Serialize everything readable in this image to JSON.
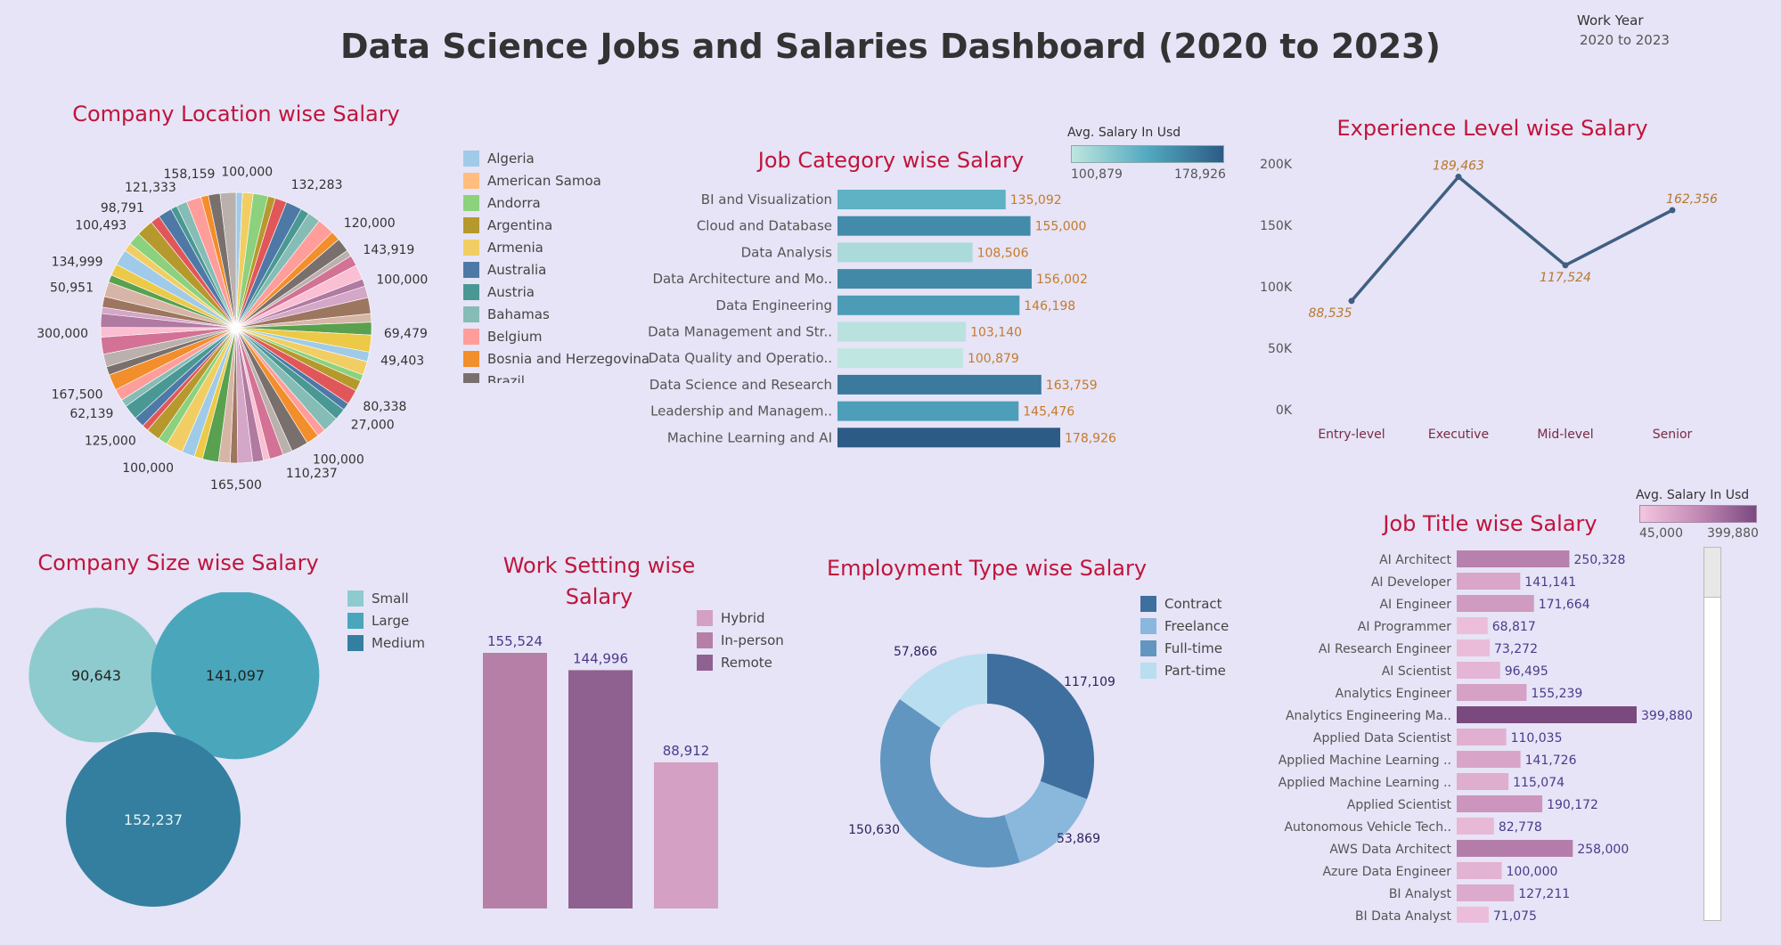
{
  "dashboard": {
    "title": "Data Science Jobs and Salaries Dashboard (2020 to 2023)",
    "filter_label": "Work Year",
    "filter_value": "2020 to 2023"
  },
  "location": {
    "title": "Company Location wise Salary",
    "legend": [
      "Algeria",
      "American Samoa",
      "Andorra",
      "Argentina",
      "Armenia",
      "Australia",
      "Austria",
      "Bahamas",
      "Belgium",
      "Bosnia and Herzegovina",
      "Brazil"
    ],
    "legend_colors": [
      "#a0cbe8",
      "#ffbe7d",
      "#8cd17d",
      "#b6992d",
      "#f1ce63",
      "#4e79a7",
      "#499894",
      "#86bcb6",
      "#ff9d9a",
      "#f28e2b",
      "#79706e"
    ],
    "palette": [
      "#a0cbe8",
      "#f1ce63",
      "#8cd17d",
      "#b6992d",
      "#e15759",
      "#4e79a7",
      "#499894",
      "#86bcb6",
      "#ff9d9a",
      "#f28e2b",
      "#79706e",
      "#bab0ac",
      "#d37295",
      "#fabfd2",
      "#b07aa1",
      "#d4a6c8",
      "#9d7660",
      "#d7b5a6",
      "#59a14f",
      "#edc948"
    ],
    "labels": [
      {
        "v": "100,000",
        "a": 4
      },
      {
        "v": "132,283",
        "a": 24
      },
      {
        "v": "120,000",
        "a": 48
      },
      {
        "v": "143,919",
        "a": 60
      },
      {
        "v": "100,000",
        "a": 72
      },
      {
        "v": "69,479",
        "a": 92
      },
      {
        "v": "49,403",
        "a": 102
      },
      {
        "v": "80,338",
        "a": 120
      },
      {
        "v": "27,000",
        "a": 128
      },
      {
        "v": "100,000",
        "a": 147
      },
      {
        "v": "110,237",
        "a": 158
      },
      {
        "v": "165,500",
        "a": 180
      },
      {
        "v": "100,000",
        "a": 207
      },
      {
        "v": "125,000",
        "a": 224
      },
      {
        "v": "62,139",
        "a": 237
      },
      {
        "v": "167,500",
        "a": 245
      },
      {
        "v": "300,000",
        "a": 268
      },
      {
        "v": "50,951",
        "a": 285
      },
      {
        "v": "134,999",
        "a": 295
      },
      {
        "v": "100,493",
        "a": 311
      },
      {
        "v": "98,791",
        "a": 320
      },
      {
        "v": "121,333",
        "a": 334
      },
      {
        "v": "158,159",
        "a": 349
      }
    ]
  },
  "job_category": {
    "title": "Job Category wise Salary",
    "scale_title": "Avg. Salary In Usd",
    "scale_min": "100,879",
    "scale_max": "178,926"
  },
  "experience": {
    "title": "Experience Level wise Salary"
  },
  "company_size": {
    "title": "Company Size wise Salary",
    "legend": [
      "Small",
      "Large",
      "Medium"
    ],
    "colors": [
      "#8ecbce",
      "#4aa6bb",
      "#347f9f"
    ],
    "values": [
      "90,643",
      "141,097",
      "152,237"
    ]
  },
  "work_setting": {
    "title_line1": "Work Setting wise",
    "title_line2": "Salary",
    "legend": [
      "Hybrid",
      "In-person",
      "Remote"
    ],
    "legend_colors": [
      "#d4a0c4",
      "#b57fa8",
      "#8f6190"
    ]
  },
  "employment": {
    "title": "Employment Type wise Salary",
    "legend": [
      "Contract",
      "Freelance",
      "Full-time",
      "Part-time"
    ],
    "colors": [
      "#3f6f9f",
      "#8ab7dc",
      "#6196c0",
      "#b8def0"
    ]
  },
  "job_title": {
    "title": "Job Title wise Salary",
    "scale_title": "Avg. Salary In Usd",
    "scale_min": "45,000",
    "scale_max": "399,880"
  },
  "chart_data": [
    {
      "type": "pie",
      "title": "Company Location wise Salary",
      "labeled_values": [
        100000,
        132283,
        120000,
        143919,
        100000,
        69479,
        49403,
        80338,
        27000,
        100000,
        110237,
        165500,
        100000,
        125000,
        62139,
        167500,
        300000,
        50951,
        134999,
        100493,
        98791,
        121333,
        158159
      ],
      "legend": [
        "Algeria",
        "American Samoa",
        "Andorra",
        "Argentina",
        "Armenia",
        "Australia",
        "Austria",
        "Bahamas",
        "Belgium",
        "Bosnia and Herzegovina",
        "Brazil"
      ]
    },
    {
      "type": "bar",
      "title": "Job Category wise Salary",
      "orientation": "horizontal",
      "categories": [
        "BI and Visualization",
        "Cloud and Database",
        "Data Analysis",
        "Data Architecture and Mo..",
        "Data Engineering",
        "Data Management and Str..",
        "Data Quality and Operatio..",
        "Data Science and Research",
        "Leadership and Managem..",
        "Machine Learning and AI"
      ],
      "values": [
        135092,
        155000,
        108506,
        156002,
        146198,
        103140,
        100879,
        163759,
        145476,
        178926
      ],
      "labels": [
        "135,092",
        "155,000",
        "108,506",
        "156,002",
        "146,198",
        "103,140",
        "100,879",
        "163,759",
        "145,476",
        "178,926"
      ],
      "color_range": [
        100879,
        178926
      ]
    },
    {
      "type": "line",
      "title": "Experience Level wise Salary",
      "categories": [
        "Entry-level",
        "Executive",
        "Mid-level",
        "Senior"
      ],
      "values": [
        88535,
        189463,
        117524,
        162356
      ],
      "labels": [
        "88,535",
        "189,463",
        "117,524",
        "162,356"
      ],
      "yticks": [
        "0K",
        "50K",
        "100K",
        "150K",
        "200K"
      ],
      "ylim": [
        0,
        200000
      ]
    },
    {
      "type": "bubble",
      "title": "Company Size wise Salary",
      "categories": [
        "Small",
        "Large",
        "Medium"
      ],
      "values": [
        90643,
        141097,
        152237
      ],
      "labels": [
        "90,643",
        "141,097",
        "152,237"
      ]
    },
    {
      "type": "bar",
      "title": "Work Setting wise Salary",
      "categories": [
        "In-person",
        "Remote",
        "Hybrid"
      ],
      "values": [
        155524,
        144996,
        88912
      ],
      "labels": [
        "155,524",
        "144,996",
        "88,912"
      ],
      "colors": [
        "#b57fa8",
        "#8f6190",
        "#d4a0c4"
      ]
    },
    {
      "type": "pie",
      "title": "Employment Type wise Salary",
      "categories": [
        "Contract",
        "Freelance",
        "Full-time",
        "Part-time"
      ],
      "values": [
        117109,
        53869,
        150630,
        57866
      ],
      "labels": [
        "117,109",
        "53,869",
        "150,630",
        "57,866"
      ]
    },
    {
      "type": "bar",
      "title": "Job Title wise Salary",
      "orientation": "horizontal",
      "categories": [
        "AI Architect",
        "AI Developer",
        "AI Engineer",
        "AI Programmer",
        "AI Research Engineer",
        "AI Scientist",
        "Analytics Engineer",
        "Analytics Engineering Ma..",
        "Applied Data Scientist",
        "Applied Machine Learning ..",
        "Applied Machine Learning ..",
        "Applied Scientist",
        "Autonomous Vehicle Tech..",
        "AWS Data Architect",
        "Azure Data Engineer",
        "BI Analyst",
        "BI Data Analyst"
      ],
      "values": [
        250328,
        141141,
        171664,
        68817,
        73272,
        96495,
        155239,
        399880,
        110035,
        141726,
        115074,
        190172,
        82778,
        258000,
        100000,
        127211,
        71075
      ],
      "labels": [
        "250,328",
        "141,141",
        "171,664",
        "68,817",
        "73,272",
        "96,495",
        "155,239",
        "399,880",
        "110,035",
        "141,726",
        "115,074",
        "190,172",
        "82,778",
        "258,000",
        "100,000",
        "127,211",
        "71,075"
      ],
      "color_range": [
        45000,
        399880
      ]
    }
  ]
}
